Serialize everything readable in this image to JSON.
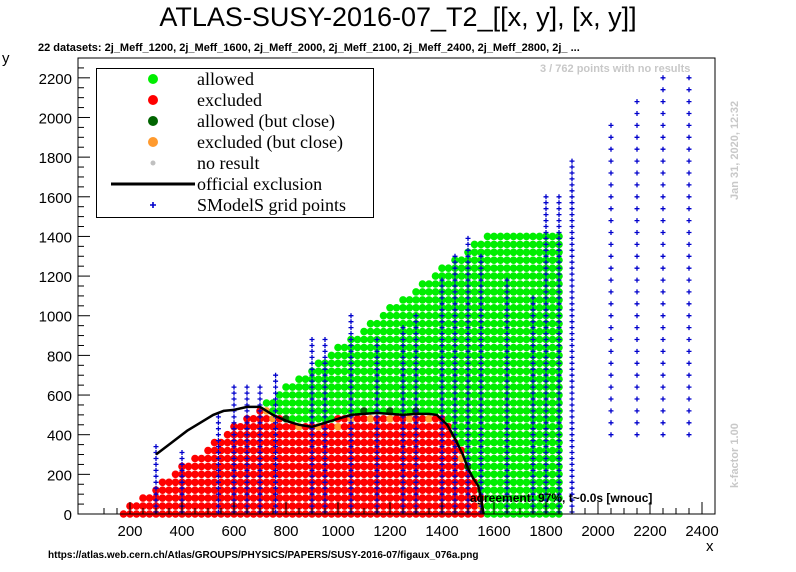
{
  "title": "ATLAS-SUSY-2016-07_T2_[[x, y], [x, y]]",
  "subtitle": "22 datasets: 2j_Meff_1200, 2j_Meff_1600, 2j_Meff_2000, 2j_Meff_2100, 2j_Meff_2400, 2j_Meff_2800, 2j_ ...",
  "note_no_results": "3 / 762 points with no results",
  "timestamp": "Jan 31, 2020, 12:32",
  "k_factor": "k-factor 1.00",
  "agreement": "agreement: 97%, t~0.0s [wnouc]",
  "source_url": "https://atlas.web.cern.ch/Atlas/GROUPS/PHYSICS/PAPERS/SUSY-2016-07/figaux_076a.png",
  "legend": [
    {
      "label": "allowed",
      "color": "#00ee00",
      "marker": "dot"
    },
    {
      "label": "excluded",
      "color": "#ff0000",
      "marker": "dot"
    },
    {
      "label": "allowed (but close)",
      "color": "#006400",
      "marker": "dot"
    },
    {
      "label": "excluded (but close)",
      "color": "#ff9a2e",
      "marker": "dot"
    },
    {
      "label": "no result",
      "color": "#c0c0c0",
      "marker": "small-dot"
    },
    {
      "label": "official exclusion",
      "color": "#000000",
      "marker": "line"
    },
    {
      "label": "SModelS grid points",
      "color": "#0000cc",
      "marker": "plus"
    }
  ],
  "chart_data": {
    "type": "scatter",
    "title": "ATLAS-SUSY-2016-07_T2_[[x, y], [x, y]]",
    "xlabel": "x",
    "ylabel": "y",
    "xlim": [
      0,
      2450
    ],
    "ylim": [
      0,
      2300
    ],
    "x_ticks": [
      "200",
      "400",
      "600",
      "800",
      "1000",
      "1200",
      "1400",
      "1600",
      "1800",
      "2000",
      "2200",
      "2400"
    ],
    "y_ticks": [
      "0",
      "200",
      "400",
      "600",
      "800",
      "1000",
      "1200",
      "1400",
      "1600",
      "1800",
      "2000",
      "2200"
    ],
    "official_exclusion": {
      "x": [
        300,
        360,
        420,
        470,
        520,
        560,
        600,
        650,
        700,
        750,
        800,
        850,
        900,
        950,
        1000,
        1050,
        1100,
        1150,
        1200,
        1250,
        1300,
        1350,
        1380,
        1420,
        1450,
        1480,
        1500,
        1520,
        1540,
        1550,
        1560
      ],
      "y": [
        300,
        360,
        420,
        460,
        500,
        520,
        525,
        540,
        540,
        500,
        470,
        450,
        440,
        460,
        480,
        500,
        505,
        510,
        505,
        500,
        505,
        505,
        500,
        450,
        380,
        300,
        230,
        180,
        140,
        80,
        0
      ]
    },
    "grid_columns": [
      {
        "x": 2050,
        "y_min": 400,
        "y_max": 2000
      },
      {
        "x": 2150,
        "y_min": 400,
        "y_max": 2100
      },
      {
        "x": 2250,
        "y_min": 400,
        "y_max": 2200
      },
      {
        "x": 2350,
        "y_min": 400,
        "y_max": 2200
      }
    ]
  }
}
